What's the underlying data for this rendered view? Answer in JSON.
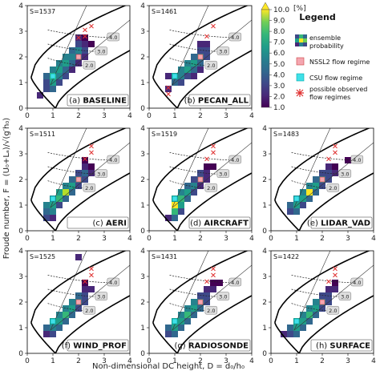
{
  "figure": {
    "xlabel": "Non-dimensional DC height, D = d₀/h₀",
    "ylabel": "Froude number, F = (U₀+Lₐ)/√(g′h₀)"
  },
  "colorbar": {
    "unit": "[%]",
    "ticks": [
      "10.0",
      "9.0",
      "8.0",
      "7.0",
      "6.0",
      "5.0",
      "4.0",
      "3.0",
      "2.0",
      "1.0"
    ],
    "min": 1.0,
    "max": 10.0,
    "colors": [
      "#440154",
      "#482878",
      "#3e4989",
      "#31688e",
      "#26828e",
      "#1f9e89",
      "#35b779",
      "#6ece58",
      "#b5de2b",
      "#fde725"
    ]
  },
  "legend": {
    "title": "Legend",
    "items": [
      {
        "label": "ensemble probability",
        "icon": "ensemble-probability-icon"
      },
      {
        "label": "NSSL2 flow regime",
        "icon": "nssl2-square-icon"
      },
      {
        "label": "CSU flow regime",
        "icon": "csu-square-icon"
      },
      {
        "label": "possible observed flow regimes",
        "icon": "observed-regime-cross-icon"
      }
    ]
  },
  "contour_labels": [
    "4.0",
    "3.0",
    "2.0"
  ],
  "chart_data": [
    {
      "type": "heatmap",
      "panel": "(a)",
      "name": "BASELINE",
      "count": "S=1537",
      "xlim": [
        0,
        4
      ],
      "ylim": [
        0,
        4
      ],
      "xticks": [
        "0",
        "1",
        "2",
        "3",
        "4"
      ],
      "yticks": [
        "0",
        "1",
        "2",
        "3",
        "4"
      ],
      "cells": [
        [
          0.5,
          0.5,
          2
        ],
        [
          0.75,
          0.75,
          3
        ],
        [
          1.0,
          0.75,
          4
        ],
        [
          0.75,
          1.0,
          3
        ],
        [
          1.0,
          1.0,
          6
        ],
        [
          1.25,
          1.0,
          3
        ],
        [
          0.75,
          1.25,
          4
        ],
        [
          1.0,
          1.25,
          7
        ],
        [
          1.25,
          1.25,
          5
        ],
        [
          1.5,
          1.25,
          3
        ],
        [
          1.0,
          1.5,
          5
        ],
        [
          1.25,
          1.5,
          6
        ],
        [
          1.5,
          1.5,
          4
        ],
        [
          1.75,
          1.5,
          2
        ],
        [
          1.25,
          1.75,
          5
        ],
        [
          1.5,
          1.75,
          6
        ],
        [
          1.75,
          1.75,
          4
        ],
        [
          2.0,
          1.75,
          2
        ],
        [
          1.5,
          2.0,
          5
        ],
        [
          1.75,
          2.0,
          5
        ],
        [
          2.0,
          2.0,
          4
        ],
        [
          2.25,
          2.0,
          2
        ],
        [
          1.75,
          2.25,
          4
        ],
        [
          2.0,
          2.25,
          5
        ],
        [
          2.25,
          2.25,
          3
        ],
        [
          2.0,
          2.5,
          3
        ],
        [
          2.25,
          2.5,
          2
        ],
        [
          2.5,
          2.5,
          1
        ],
        [
          2.0,
          2.75,
          2
        ],
        [
          2.25,
          2.75,
          1
        ]
      ],
      "nssl2": [
        2.0,
        2.0
      ],
      "csu": [
        1.0,
        1.25
      ],
      "observed": [
        [
          2.0,
          2.75
        ],
        [
          2.25,
          2.8
        ],
        [
          2.25,
          3.05
        ],
        [
          2.5,
          3.2
        ]
      ]
    },
    {
      "type": "heatmap",
      "panel": "(b)",
      "name": "PECAN_ALL",
      "count": "S=1461",
      "xlim": [
        0,
        4
      ],
      "ylim": [
        0,
        4
      ],
      "xticks": [
        "0",
        "1",
        "2",
        "3",
        "4"
      ],
      "yticks": [
        "0",
        "1",
        "2",
        "3",
        "4"
      ],
      "cells": [
        [
          0.75,
          0.75,
          2
        ],
        [
          1.0,
          1.0,
          4
        ],
        [
          1.25,
          1.0,
          3
        ],
        [
          0.75,
          1.25,
          2
        ],
        [
          1.0,
          1.25,
          6
        ],
        [
          1.25,
          1.25,
          5
        ],
        [
          1.5,
          1.25,
          3
        ],
        [
          1.75,
          1.25,
          2
        ],
        [
          1.25,
          1.5,
          5
        ],
        [
          1.5,
          1.5,
          6
        ],
        [
          1.75,
          1.5,
          4
        ],
        [
          2.0,
          1.5,
          2
        ],
        [
          1.5,
          1.75,
          5
        ],
        [
          1.75,
          1.75,
          6
        ],
        [
          2.0,
          1.75,
          4
        ],
        [
          1.75,
          2.0,
          4
        ],
        [
          2.0,
          2.0,
          5
        ],
        [
          2.25,
          2.0,
          3
        ],
        [
          2.0,
          2.25,
          3
        ],
        [
          2.25,
          2.25,
          3
        ],
        [
          2.0,
          2.5,
          2
        ],
        [
          2.25,
          2.5,
          2
        ]
      ],
      "nssl2": [
        2.0,
        2.0
      ],
      "csu": [
        1.0,
        1.25
      ],
      "observed": [
        [
          0.75,
          0.55
        ],
        [
          0.75,
          0.8
        ],
        [
          2.25,
          2.8
        ],
        [
          2.5,
          3.2
        ]
      ]
    },
    {
      "type": "heatmap",
      "panel": "(c)",
      "name": "AERI",
      "count": "S=1511",
      "xlim": [
        0,
        4
      ],
      "ylim": [
        0,
        4
      ],
      "xticks": [
        "0",
        "1",
        "2",
        "3",
        "4"
      ],
      "yticks": [
        "0",
        "1",
        "2",
        "3",
        "4"
      ],
      "cells": [
        [
          0.75,
          0.5,
          3
        ],
        [
          1.0,
          0.5,
          2
        ],
        [
          0.75,
          0.75,
          4
        ],
        [
          1.0,
          0.75,
          5
        ],
        [
          0.75,
          1.0,
          5
        ],
        [
          1.0,
          1.0,
          6
        ],
        [
          1.25,
          1.0,
          3
        ],
        [
          1.0,
          1.25,
          5
        ],
        [
          1.25,
          1.25,
          7
        ],
        [
          1.5,
          1.25,
          4
        ],
        [
          1.25,
          1.5,
          6
        ],
        [
          1.5,
          1.5,
          9
        ],
        [
          1.75,
          1.5,
          4
        ],
        [
          1.5,
          1.75,
          5
        ],
        [
          1.75,
          1.75,
          6
        ],
        [
          2.0,
          1.75,
          3
        ],
        [
          1.75,
          2.0,
          4
        ],
        [
          2.0,
          2.0,
          5
        ],
        [
          2.25,
          2.0,
          3
        ],
        [
          2.0,
          2.25,
          3
        ],
        [
          2.25,
          2.25,
          4
        ],
        [
          2.5,
          2.25,
          2
        ],
        [
          2.25,
          2.5,
          2
        ],
        [
          2.5,
          2.5,
          1
        ],
        [
          2.25,
          2.75,
          1
        ]
      ],
      "nssl2": [
        2.0,
        2.0
      ],
      "csu": [
        1.0,
        1.25
      ],
      "observed": [
        [
          2.25,
          2.8
        ],
        [
          2.5,
          3.05
        ],
        [
          2.5,
          3.3
        ]
      ]
    },
    {
      "type": "heatmap",
      "panel": "(d)",
      "name": "AIRCRAFT",
      "count": "S=1519",
      "xlim": [
        0,
        4
      ],
      "ylim": [
        0,
        4
      ],
      "xticks": [
        "0",
        "1",
        "2",
        "3",
        "4"
      ],
      "yticks": [
        "0",
        "1",
        "2",
        "3",
        "4"
      ],
      "cells": [
        [
          0.75,
          0.5,
          2
        ],
        [
          1.0,
          0.5,
          4
        ],
        [
          1.0,
          0.75,
          7
        ],
        [
          1.25,
          0.75,
          3
        ],
        [
          1.0,
          1.0,
          10
        ],
        [
          1.25,
          1.0,
          6
        ],
        [
          1.0,
          1.25,
          6
        ],
        [
          1.25,
          1.25,
          7
        ],
        [
          1.5,
          1.25,
          4
        ],
        [
          1.25,
          1.5,
          5
        ],
        [
          1.5,
          1.5,
          6
        ],
        [
          1.75,
          1.5,
          3
        ],
        [
          1.5,
          1.75,
          4
        ],
        [
          1.75,
          1.75,
          5
        ],
        [
          2.0,
          1.75,
          2
        ],
        [
          1.75,
          2.0,
          3
        ],
        [
          2.0,
          2.0,
          4
        ],
        [
          2.25,
          2.0,
          2
        ],
        [
          2.0,
          2.25,
          3
        ],
        [
          2.25,
          2.25,
          2
        ],
        [
          2.25,
          2.5,
          1
        ],
        [
          2.5,
          2.5,
          1
        ]
      ],
      "nssl2": [
        2.0,
        2.0
      ],
      "csu": [
        1.0,
        1.25
      ],
      "observed": [
        [
          2.25,
          2.8
        ],
        [
          2.5,
          3.05
        ],
        [
          2.5,
          3.3
        ]
      ]
    },
    {
      "type": "heatmap",
      "panel": "(e)",
      "name": "LIDAR_VAD",
      "count": "S=1483",
      "xlim": [
        0,
        4
      ],
      "ylim": [
        0,
        4
      ],
      "xticks": [
        "0",
        "1",
        "2",
        "3",
        "4"
      ],
      "yticks": [
        "0",
        "1",
        "2",
        "3",
        "4"
      ],
      "cells": [
        [
          0.75,
          0.75,
          3
        ],
        [
          1.0,
          0.75,
          4
        ],
        [
          0.75,
          1.0,
          4
        ],
        [
          1.0,
          1.0,
          6
        ],
        [
          1.25,
          1.0,
          3
        ],
        [
          1.0,
          1.25,
          5
        ],
        [
          1.25,
          1.25,
          6
        ],
        [
          1.5,
          1.25,
          4
        ],
        [
          1.25,
          1.5,
          5
        ],
        [
          1.5,
          1.5,
          10
        ],
        [
          1.75,
          1.5,
          4
        ],
        [
          1.5,
          1.75,
          5
        ],
        [
          1.75,
          1.75,
          6
        ],
        [
          2.0,
          1.75,
          3
        ],
        [
          1.75,
          2.0,
          4
        ],
        [
          2.0,
          2.0,
          5
        ],
        [
          2.25,
          2.0,
          3
        ],
        [
          2.0,
          2.25,
          3
        ],
        [
          2.25,
          2.25,
          3
        ],
        [
          2.5,
          2.25,
          2
        ],
        [
          2.25,
          2.5,
          2
        ],
        [
          2.5,
          2.5,
          1
        ],
        [
          3.0,
          2.75,
          1
        ]
      ],
      "nssl2": [
        2.0,
        2.0
      ],
      "csu": [
        1.0,
        1.25
      ],
      "observed": [
        [
          2.25,
          2.8
        ],
        [
          2.5,
          3.05
        ],
        [
          2.5,
          3.3
        ]
      ]
    },
    {
      "type": "heatmap",
      "panel": "(f)",
      "name": "WIND_PROF",
      "count": "S=1525",
      "xlim": [
        0,
        4
      ],
      "ylim": [
        0,
        4
      ],
      "xticks": [
        "0",
        "1",
        "2",
        "3",
        "4"
      ],
      "yticks": [
        "0",
        "1",
        "2",
        "3",
        "4"
      ],
      "cells": [
        [
          0.75,
          0.75,
          2
        ],
        [
          1.0,
          0.75,
          3
        ],
        [
          0.75,
          1.0,
          4
        ],
        [
          1.0,
          1.0,
          5
        ],
        [
          1.25,
          1.0,
          4
        ],
        [
          1.0,
          1.25,
          6
        ],
        [
          1.25,
          1.25,
          6
        ],
        [
          1.5,
          1.25,
          4
        ],
        [
          1.25,
          1.5,
          5
        ],
        [
          1.5,
          1.5,
          7
        ],
        [
          1.75,
          1.5,
          4
        ],
        [
          1.5,
          1.75,
          5
        ],
        [
          1.75,
          1.75,
          6
        ],
        [
          2.0,
          1.75,
          3
        ],
        [
          1.75,
          2.0,
          5
        ],
        [
          2.0,
          2.0,
          5
        ],
        [
          2.25,
          2.0,
          3
        ],
        [
          2.0,
          2.25,
          4
        ],
        [
          2.25,
          2.25,
          3
        ],
        [
          2.25,
          2.5,
          2
        ],
        [
          2.5,
          2.5,
          2
        ],
        [
          2.25,
          2.75,
          1
        ],
        [
          2.0,
          3.75,
          2
        ]
      ],
      "nssl2": [
        2.0,
        2.0
      ],
      "csu": [
        1.0,
        1.25
      ],
      "observed": [
        [
          2.25,
          2.8
        ],
        [
          2.5,
          3.05
        ],
        [
          2.5,
          3.3
        ]
      ]
    },
    {
      "type": "heatmap",
      "panel": "(g)",
      "name": "RADIOSONDE",
      "count": "S=1431",
      "xlim": [
        0,
        4
      ],
      "ylim": [
        0,
        4
      ],
      "xticks": [
        "0",
        "1",
        "2",
        "3",
        "4"
      ],
      "yticks": [
        "0",
        "1",
        "2",
        "3",
        "4"
      ],
      "cells": [
        [
          0.75,
          0.75,
          3
        ],
        [
          1.0,
          0.75,
          4
        ],
        [
          0.75,
          1.0,
          4
        ],
        [
          1.0,
          1.0,
          6
        ],
        [
          1.25,
          1.0,
          4
        ],
        [
          1.0,
          1.25,
          6
        ],
        [
          1.25,
          1.25,
          6
        ],
        [
          1.5,
          1.25,
          4
        ],
        [
          1.25,
          1.5,
          5
        ],
        [
          1.5,
          1.5,
          7
        ],
        [
          1.75,
          1.5,
          4
        ],
        [
          1.5,
          1.75,
          5
        ],
        [
          1.75,
          1.75,
          6
        ],
        [
          2.0,
          1.75,
          4
        ],
        [
          1.75,
          2.0,
          5
        ],
        [
          2.0,
          2.0,
          5
        ],
        [
          2.25,
          2.0,
          3
        ],
        [
          2.0,
          2.25,
          3
        ],
        [
          2.25,
          2.25,
          3
        ],
        [
          2.25,
          2.5,
          2
        ],
        [
          2.5,
          2.5,
          2
        ],
        [
          2.5,
          2.75,
          1
        ],
        [
          2.75,
          2.75,
          1
        ]
      ],
      "nssl2": [
        2.0,
        2.0
      ],
      "csu": [
        1.0,
        1.25
      ],
      "observed": [
        [
          2.25,
          2.8
        ],
        [
          2.5,
          3.05
        ],
        [
          2.5,
          3.3
        ]
      ]
    },
    {
      "type": "heatmap",
      "panel": "(h)",
      "name": "SURFACE",
      "count": "S=1422",
      "xlim": [
        0,
        4
      ],
      "ylim": [
        0,
        4
      ],
      "xticks": [
        "0",
        "1",
        "2",
        "3",
        "4"
      ],
      "yticks": [
        "0",
        "1",
        "2",
        "3",
        "4"
      ],
      "cells": [
        [
          0.5,
          0.75,
          2
        ],
        [
          0.75,
          0.75,
          3
        ],
        [
          1.0,
          0.75,
          4
        ],
        [
          0.75,
          1.0,
          4
        ],
        [
          1.0,
          1.0,
          6
        ],
        [
          1.25,
          1.0,
          4
        ],
        [
          1.0,
          1.25,
          6
        ],
        [
          1.25,
          1.25,
          6
        ],
        [
          1.5,
          1.25,
          4
        ],
        [
          1.25,
          1.5,
          5
        ],
        [
          1.5,
          1.5,
          7
        ],
        [
          1.75,
          1.5,
          4
        ],
        [
          1.5,
          1.75,
          5
        ],
        [
          1.75,
          1.75,
          6
        ],
        [
          2.0,
          1.75,
          3
        ],
        [
          1.75,
          2.0,
          5
        ],
        [
          2.0,
          2.0,
          5
        ],
        [
          2.25,
          2.0,
          3
        ],
        [
          2.0,
          2.25,
          3
        ],
        [
          2.25,
          2.25,
          3
        ],
        [
          2.25,
          2.5,
          2
        ],
        [
          2.5,
          2.5,
          2
        ],
        [
          2.5,
          2.75,
          1
        ]
      ],
      "nssl2": [
        2.0,
        2.0
      ],
      "csu": [
        1.0,
        1.25
      ],
      "observed": [
        [
          2.25,
          2.8
        ],
        [
          2.5,
          3.05
        ],
        [
          2.5,
          3.3
        ]
      ]
    }
  ]
}
